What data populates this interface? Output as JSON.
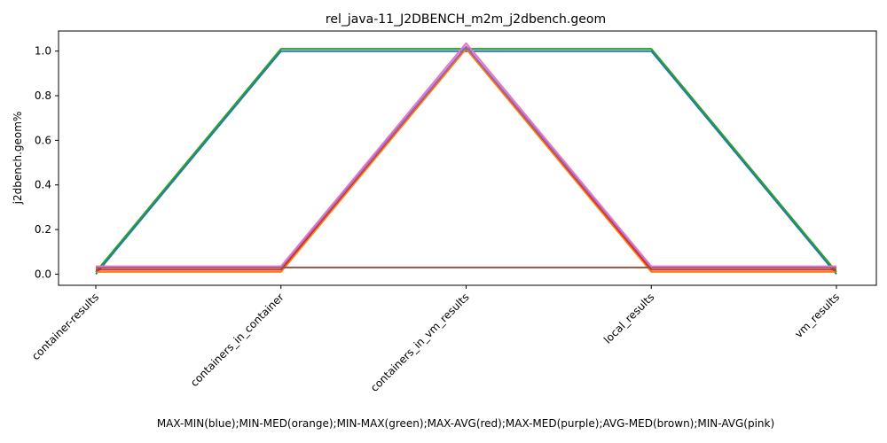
{
  "chart_data": {
    "type": "line",
    "title": "rel_java-11_J2DBENCH_m2m_j2dbench.geom",
    "xlabel": "MAX-MIN(blue);MIN-MED(orange);MIN-MAX(green);MAX-AVG(red);MAX-MED(purple);AVG-MED(brown);MIN-AVG(pink)",
    "ylabel": "j2dbench.geom%",
    "categories": [
      "container-results",
      "containers_in_container",
      "containers_in_vm_results",
      "local_results",
      "vm_results"
    ],
    "ylim": [
      -0.05,
      1.09
    ],
    "yticks": [
      "0.0",
      "0.2",
      "0.4",
      "0.6",
      "0.8",
      "1.0"
    ],
    "grid": false,
    "series": [
      {
        "color": "#1f77b4",
        "values": [
          0.0,
          1.0,
          1.0,
          1.0,
          0.0
        ]
      },
      {
        "color": "#ff7f0e",
        "values": [
          0.01,
          0.01,
          1.01,
          0.01,
          0.01
        ]
      },
      {
        "color": "#2ca02c",
        "values": [
          0.01,
          1.01,
          1.01,
          1.01,
          0.01
        ]
      },
      {
        "color": "#d62728",
        "values": [
          0.02,
          0.02,
          1.02,
          0.02,
          0.02
        ]
      },
      {
        "color": "#9467bd",
        "values": [
          0.03,
          0.03,
          1.02,
          0.03,
          0.03
        ]
      },
      {
        "color": "#8c564b",
        "values": [
          0.03,
          0.03,
          0.03,
          0.03,
          0.03
        ]
      },
      {
        "color": "#e377c2",
        "values": [
          0.035,
          0.035,
          1.035,
          0.035,
          0.035
        ]
      }
    ]
  }
}
